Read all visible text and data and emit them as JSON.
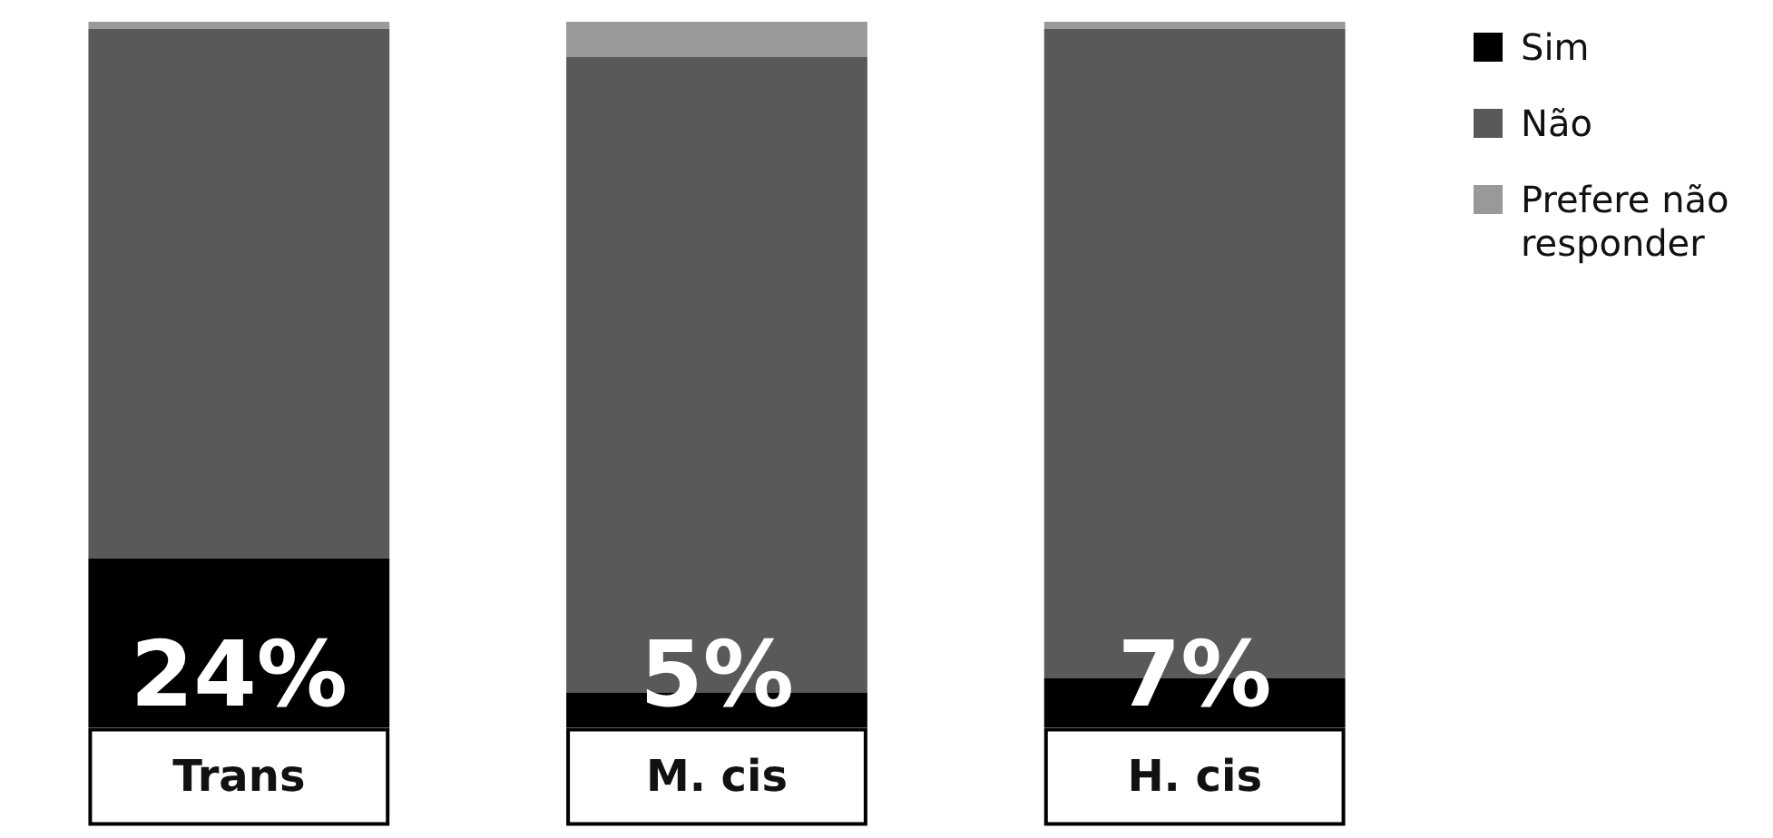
{
  "chart_data": {
    "type": "bar",
    "stacked": true,
    "categories": [
      "Trans",
      "M. cis",
      "H. cis"
    ],
    "ylim": [
      0,
      100
    ],
    "tick_labels": "x",
    "legend": "top right",
    "series": [
      {
        "name": "Sim",
        "color": "#000000",
        "values": [
          24,
          5,
          7
        ],
        "value_labels": [
          "24%",
          "5%",
          "7%"
        ]
      },
      {
        "name": "Não",
        "color": "#595959",
        "values": [
          75,
          90,
          92
        ]
      },
      {
        "name": "Prefere não responder",
        "color": "#999999",
        "values": [
          1,
          5,
          1
        ]
      }
    ]
  }
}
